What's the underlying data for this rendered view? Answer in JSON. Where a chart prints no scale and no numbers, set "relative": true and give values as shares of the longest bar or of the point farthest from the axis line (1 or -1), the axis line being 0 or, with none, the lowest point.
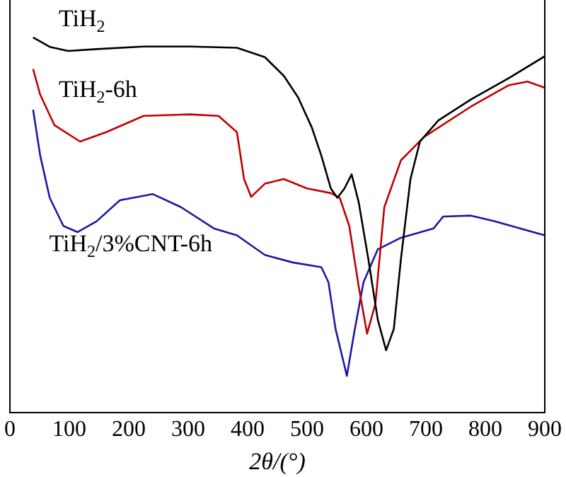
{
  "chart_data": {
    "type": "line",
    "relative": true,
    "xlabel": "2θ/(°)",
    "xlim": [
      0,
      900
    ],
    "xticks": [
      0,
      100,
      200,
      300,
      400,
      500,
      600,
      700,
      800,
      900
    ],
    "grid": false,
    "legend": false,
    "marker": "none",
    "line_style": "solid",
    "series": [
      {
        "name": "TiH$_{2}$",
        "color": "#000000",
        "x": [
          39,
          67,
          98,
          146,
          225,
          303,
          382,
          429,
          461,
          485,
          508,
          524,
          540,
          551,
          563,
          575,
          587,
          603,
          619,
          633,
          646,
          658,
          674,
          690,
          721,
          776,
          839,
          900
        ],
        "values": [
          1.0,
          0.975,
          0.964,
          0.969,
          0.976,
          0.976,
          0.9725,
          0.9475,
          0.8975,
          0.84,
          0.76,
          0.685,
          0.5975,
          0.5725,
          0.5975,
          0.635,
          0.56,
          0.41,
          0.2475,
          0.166,
          0.2225,
          0.41,
          0.6225,
          0.7225,
          0.779,
          0.835,
          0.891,
          0.95
        ]
      },
      {
        "name": "TiH$_{2}$-6h",
        "color": "#c00000",
        "x": [
          39,
          51,
          75,
          118,
          162,
          225,
          303,
          351,
          382,
          394,
          406,
          429,
          461,
          500,
          540,
          555,
          571,
          587,
          601,
          615,
          630,
          658,
          697,
          776,
          839,
          871,
          900
        ],
        "values": [
          0.916,
          0.8475,
          0.766,
          0.7225,
          0.7475,
          0.791,
          0.795,
          0.791,
          0.7475,
          0.6225,
          0.575,
          0.61,
          0.6225,
          0.5975,
          0.585,
          0.5725,
          0.4975,
          0.335,
          0.21,
          0.29,
          0.5475,
          0.6725,
          0.735,
          0.816,
          0.8725,
          0.8825,
          0.866
        ]
      },
      {
        "name": "TiH$_{2}$/3%CNT-6h",
        "color": "#1a1aa0",
        "x": [
          39,
          51,
          67,
          90,
          114,
          146,
          185,
          240,
          288,
          343,
          382,
          429,
          476,
          524,
          536,
          548,
          567,
          579,
          595,
          619,
          658,
          713,
          729,
          776,
          815,
          900
        ],
        "values": [
          0.8075,
          0.685,
          0.5725,
          0.4975,
          0.481,
          0.51,
          0.566,
          0.5825,
          0.5475,
          0.491,
          0.4725,
          0.42,
          0.4,
          0.3875,
          0.3475,
          0.2225,
          0.0975,
          0.21,
          0.3475,
          0.435,
          0.466,
          0.491,
          0.5225,
          0.525,
          0.51,
          0.4725
        ]
      }
    ]
  }
}
